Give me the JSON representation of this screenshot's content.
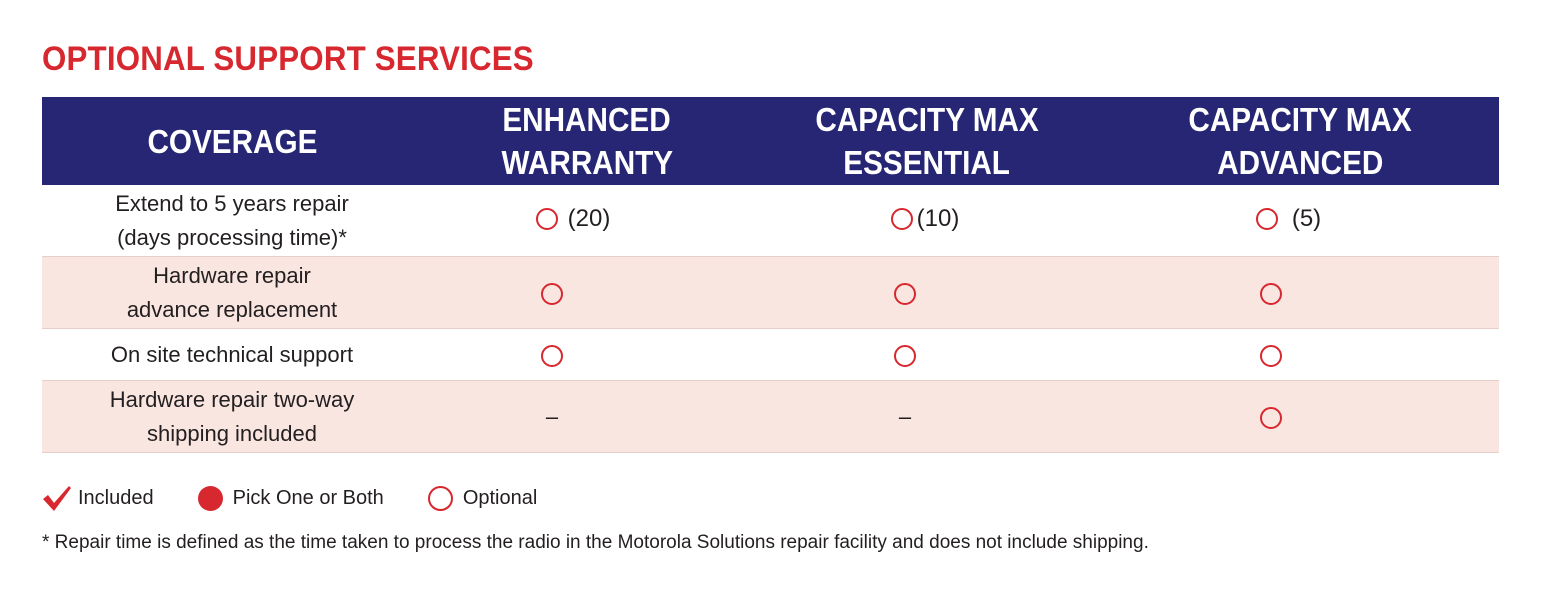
{
  "title": "OPTIONAL SUPPORT SERVICES",
  "colors": {
    "accent": "#d7282f",
    "header_bg": "#262674",
    "row_alt": "#fae6e0"
  },
  "table": {
    "headers": [
      {
        "line1": "COVERAGE",
        "line2": ""
      },
      {
        "line1": "ENHANCED",
        "line2": "WARRANTY"
      },
      {
        "line1": "CAPACITY MAX",
        "line2": "ESSENTIAL"
      },
      {
        "line1": "CAPACITY MAX",
        "line2": "ADVANCED"
      }
    ],
    "rows": [
      {
        "label_line1": "Extend to 5 years repair",
        "label_line2": "(days processing time)*",
        "cells": [
          {
            "mark": "optional",
            "text": "(20)"
          },
          {
            "mark": "optional",
            "text": "(10)"
          },
          {
            "mark": "optional",
            "text": "(5)"
          }
        ]
      },
      {
        "label_line1": "Hardware repair",
        "label_line2": "advance replacement",
        "cells": [
          {
            "mark": "optional",
            "text": ""
          },
          {
            "mark": "optional",
            "text": ""
          },
          {
            "mark": "optional",
            "text": ""
          }
        ]
      },
      {
        "label_line1": "On site technical support",
        "label_line2": "",
        "cells": [
          {
            "mark": "optional",
            "text": ""
          },
          {
            "mark": "optional",
            "text": ""
          },
          {
            "mark": "optional",
            "text": ""
          }
        ]
      },
      {
        "label_line1": "Hardware repair two-way",
        "label_line2": "shipping included",
        "cells": [
          {
            "mark": "none",
            "text": "–"
          },
          {
            "mark": "none",
            "text": "–"
          },
          {
            "mark": "optional",
            "text": ""
          }
        ]
      }
    ]
  },
  "legend": {
    "included": {
      "icon": "check-icon",
      "label": "Included"
    },
    "pick": {
      "icon": "filled-circle-icon",
      "label": "Pick One or Both"
    },
    "optional": {
      "icon": "ring-icon",
      "label": "Optional"
    }
  },
  "footnote": "* Repair time is defined as the time taken to process the radio in the Motorola Solutions repair facility and does not include shipping."
}
